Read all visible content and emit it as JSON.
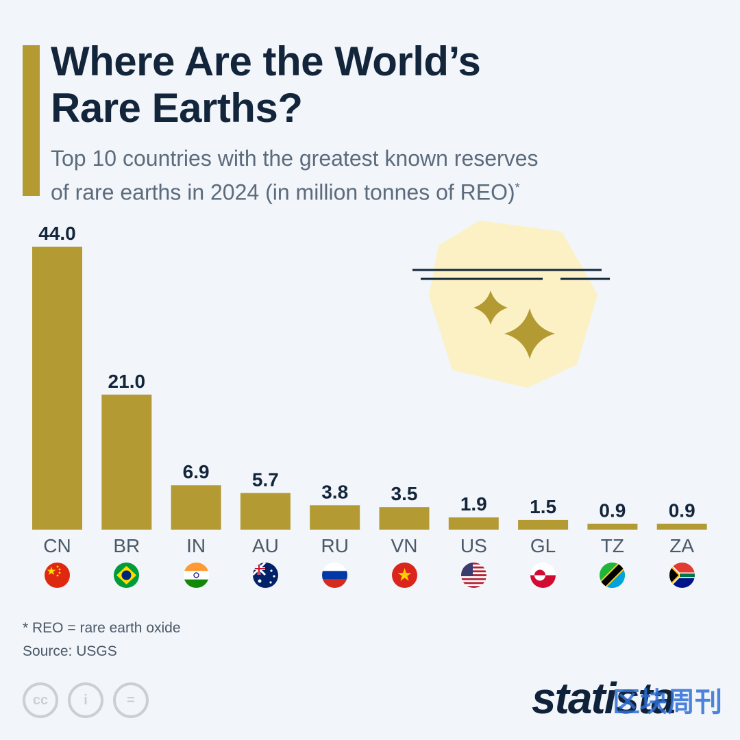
{
  "title_line1": "Where Are the World’s",
  "title_line2": "Rare Earths?",
  "subtitle_line1": "Top 10 countries with the greatest known reserves",
  "subtitle_line2": "of rare earths in 2024 (in million tonnes of REO)",
  "subtitle_mark": "*",
  "chart_data": {
    "type": "bar",
    "categories": [
      "CN",
      "BR",
      "IN",
      "AU",
      "RU",
      "VN",
      "US",
      "GL",
      "TZ",
      "ZA"
    ],
    "values": [
      44.0,
      21.0,
      6.9,
      5.7,
      3.8,
      3.5,
      1.9,
      1.5,
      0.9,
      0.9
    ],
    "value_labels": [
      "44.0",
      "21.0",
      "6.9",
      "5.7",
      "3.8",
      "3.5",
      "1.9",
      "1.5",
      "0.9",
      "0.9"
    ],
    "ylim": [
      0,
      44
    ],
    "grid": false,
    "bar_color": "#b39a33"
  },
  "flags": [
    "china-flag-icon",
    "brazil-flag-icon",
    "india-flag-icon",
    "australia-flag-icon",
    "russia-flag-icon",
    "vietnam-flag-icon",
    "usa-flag-icon",
    "greenland-flag-icon",
    "tanzania-flag-icon",
    "south-africa-flag-icon"
  ],
  "footnote_def": "* REO = rare earth oxide",
  "source": "Source: USGS",
  "license_icons": [
    "cc-icon",
    "attribution-icon",
    "no-derivatives-icon"
  ],
  "cc_labels": [
    "cc",
    "i",
    "="
  ],
  "logo": "statista",
  "watermark": "区块周刊",
  "colors": {
    "accent": "#b39a33",
    "illustration_bg": "#fbf1c4",
    "title": "#13253b",
    "subtitle": "#5b6b7c"
  }
}
